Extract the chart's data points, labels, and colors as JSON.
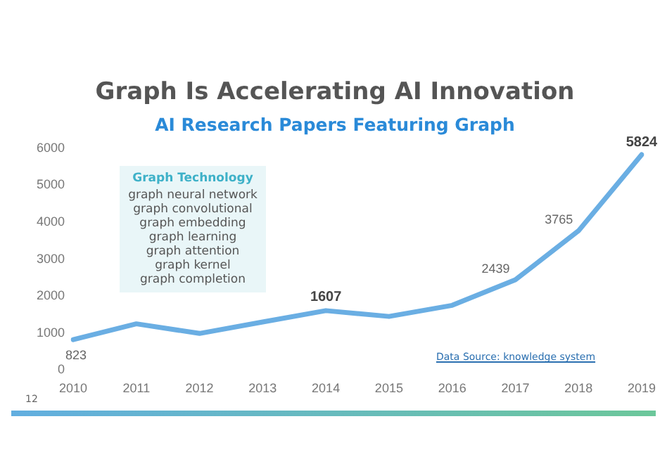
{
  "chart_data": {
    "type": "line",
    "title": "Graph Is Accelerating AI Innovation",
    "subtitle": "AI Research Papers Featuring Graph",
    "categories": [
      "2010",
      "2011",
      "2012",
      "2013",
      "2014",
      "2015",
      "2016",
      "2017",
      "2018",
      "2019"
    ],
    "series": [
      {
        "color": "#6aaee3",
        "values": [
          823,
          1250,
          990,
          1300,
          1607,
          1450,
          1750,
          2439,
          3765,
          5824
        ],
        "value_labels": [
          "823",
          null,
          null,
          null,
          "1607",
          null,
          null,
          "2439",
          "3765",
          "5824"
        ]
      }
    ],
    "ylim": [
      0,
      6000
    ],
    "yticks": [
      0,
      1000,
      2000,
      3000,
      4000,
      5000,
      6000
    ],
    "grid": false,
    "legend": false,
    "marker": "none",
    "line_style": "solid",
    "annotations": [
      "Graph Technology\ngraph neural network\ngraph convolutional\ngraph embedding\ngraph learning\ngraph attention\ngraph kernel\ngraph completion",
      "Data Source: knowledge system",
      "12"
    ]
  }
}
